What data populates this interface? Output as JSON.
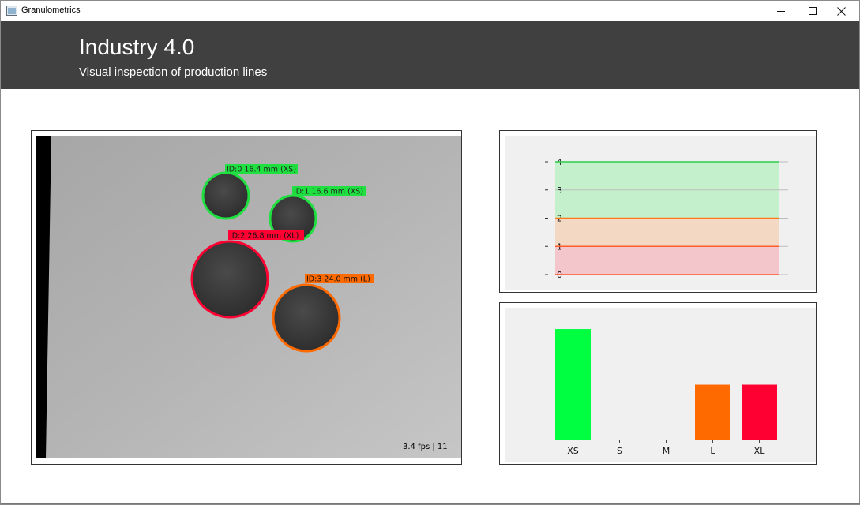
{
  "window": {
    "title": "Granulometrics",
    "icons": {
      "app": "app-window-icon",
      "minimize": "minimize-icon",
      "maximize": "maximize-icon",
      "close": "close-icon"
    }
  },
  "header": {
    "title": "Industry 4.0",
    "subtitle": "Visual inspection of production lines"
  },
  "video": {
    "status": "3.4 fps | 11",
    "detections": [
      {
        "label": "ID:0 16.4 mm (XS)",
        "class": "XS",
        "color": "#1fe040"
      },
      {
        "label": "ID:1 16.6 mm (XS)",
        "class": "XS",
        "color": "#1fe040"
      },
      {
        "label": "ID:2 26.8 mm (XL)",
        "class": "XL",
        "color": "#ff0033"
      },
      {
        "label": "ID:3 24.0 mm (L)",
        "class": "L",
        "color": "#ff6a00"
      }
    ]
  },
  "threshold_chart": {
    "chart_data": {
      "type": "area",
      "y_ticks": [
        "4",
        "3",
        "2",
        "1",
        "0"
      ],
      "ylim": [
        0,
        4
      ],
      "bands": [
        {
          "from": 2,
          "to": 4,
          "color": "#c4f0cb",
          "line": "#2ecc4a"
        },
        {
          "from": 1,
          "to": 2,
          "color": "#f3d9c4",
          "line": "#ff7a1a"
        },
        {
          "from": 0,
          "to": 1,
          "color": "#f3c6cc",
          "line": "#ff5a2a"
        }
      ],
      "grid": true
    }
  },
  "histogram": {
    "chart_data": {
      "type": "bar",
      "categories": [
        "XS",
        "S",
        "M",
        "L",
        "XL"
      ],
      "values": [
        2,
        0,
        0,
        1,
        1
      ],
      "colors": [
        "#00ff40",
        "#bbbbbb",
        "#bbbbbb",
        "#ff6a00",
        "#ff0033"
      ],
      "ylim": [
        0,
        2.1
      ]
    }
  }
}
